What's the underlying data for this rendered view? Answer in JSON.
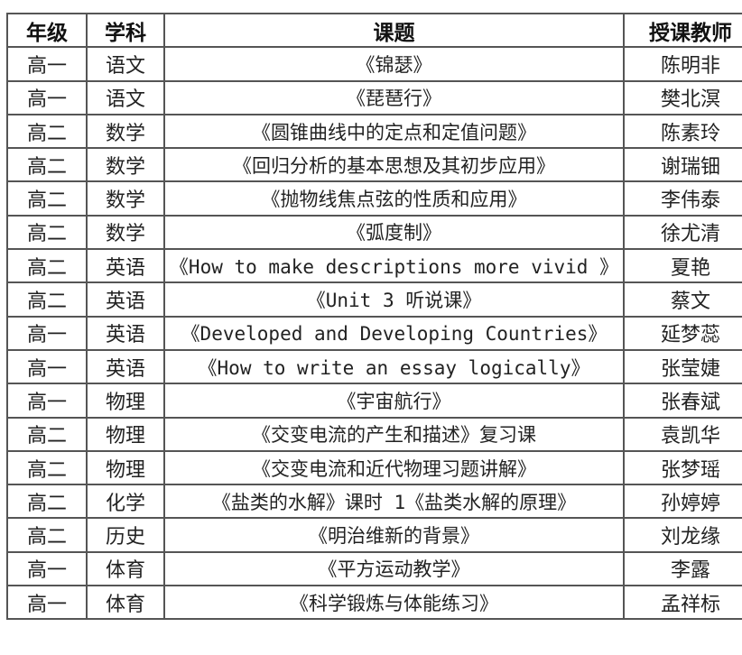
{
  "table": {
    "headers": [
      "年级",
      "学科",
      "课题",
      "授课教师"
    ],
    "rows": [
      [
        "高一",
        "语文",
        "《锦瑟》",
        "陈明非"
      ],
      [
        "高一",
        "语文",
        "《琵琶行》",
        "樊北溟"
      ],
      [
        "高二",
        "数学",
        "《圆锥曲线中的定点和定值问题》",
        "陈素玲"
      ],
      [
        "高二",
        "数学",
        "《回归分析的基本思想及其初步应用》",
        "谢瑞钿"
      ],
      [
        "高二",
        "数学",
        "《抛物线焦点弦的性质和应用》",
        "李伟泰"
      ],
      [
        "高二",
        "数学",
        "《弧度制》",
        "徐尤清"
      ],
      [
        "高二",
        "英语",
        "《How to make descriptions more vivid 》",
        "夏艳"
      ],
      [
        "高二",
        "英语",
        "《Unit 3 听说课》",
        "蔡文"
      ],
      [
        "高一",
        "英语",
        "《Developed and Developing Countries》",
        "延梦蕊"
      ],
      [
        "高一",
        "英语",
        "《How to write an essay logically》",
        "张莹婕"
      ],
      [
        "高一",
        "物理",
        "《宇宙航行》",
        "张春斌"
      ],
      [
        "高二",
        "物理",
        "《交变电流的产生和描述》复习课",
        "袁凯华"
      ],
      [
        "高二",
        "物理",
        "《交变电流和近代物理习题讲解》",
        "张梦瑶"
      ],
      [
        "高二",
        "化学",
        "《盐类的水解》课时 1《盐类水解的原理》",
        "孙婷婷"
      ],
      [
        "高二",
        "历史",
        "《明治维新的背景》",
        "刘龙缘"
      ],
      [
        "高一",
        "体育",
        "《平方运动教学》",
        "李露"
      ],
      [
        "高一",
        "体育",
        "《科学锻炼与体能练习》",
        "孟祥标"
      ]
    ]
  }
}
